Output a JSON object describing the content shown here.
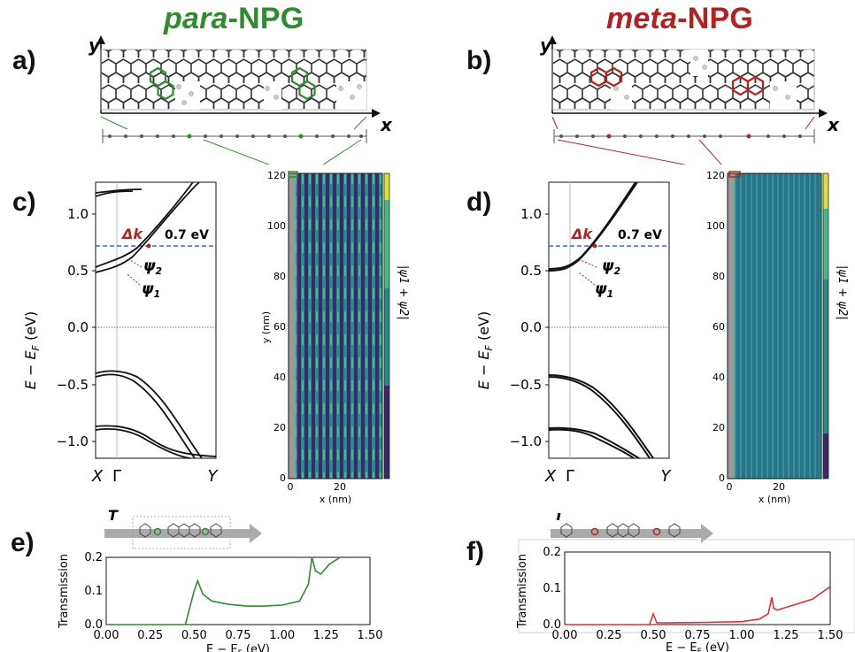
{
  "colors": {
    "para": "#2e8b2e",
    "meta": "#b22222",
    "band_line": "#111111",
    "dashed_blue": "#4466cc",
    "viridis_dark": "#3b2a6b",
    "viridis_mid": "#2a8a8a",
    "viridis_light": "#d8e13a"
  },
  "titles": {
    "para": {
      "italic": "para",
      "rest": "-NPG"
    },
    "meta": {
      "italic": "meta",
      "rest": "-NPG"
    }
  },
  "panels": {
    "a": "a)",
    "b": "b)",
    "c": "c)",
    "d": "d)",
    "e": "e)",
    "f": "f)"
  },
  "structure_axes": {
    "x": "x",
    "y": "y"
  },
  "band_plot": {
    "ylabel": "E − E",
    "ylabel_sub": "F",
    "ylabel_unit": " (eV)",
    "yticks": [
      "1.0",
      "0.5",
      "0.0",
      "−0.5",
      "−1.0"
    ],
    "xticks": [
      "X",
      "Γ",
      "Y"
    ],
    "energy_label": "0.7 eV",
    "delta_k": "Δk",
    "psi1": "ψ",
    "psi1_sub": "1",
    "psi2": "ψ",
    "psi2_sub": "2"
  },
  "map_plot": {
    "ylabel": "y (nm)",
    "xlabel": "x (nm)",
    "yticks": [
      "0",
      "20",
      "40",
      "60",
      "80",
      "100",
      "120"
    ],
    "xticks": [
      "0",
      "20"
    ],
    "colorbar_label": "|ψ1 + ψ2|"
  },
  "transmission": {
    "T_label": "T",
    "ylabel": "Transmission",
    "yticks": [
      "0.0",
      "0.1",
      "0.2"
    ],
    "xticks": [
      "0.00",
      "0.25",
      "0.50",
      "0.75",
      "1.00",
      "1.25",
      "1.50"
    ],
    "xlabel_left": "E − E",
    "xlabel_left_sub": "F",
    "xlabel_left_unit": " (eV)",
    "xlabel_right": "E − E",
    "xlabel_right_sub": "F",
    "xlabel_right_unit": " (eV)"
  },
  "chart_data": [
    {
      "type": "line",
      "panel": "e",
      "xlabel": "E − EF (eV)",
      "ylabel": "Transmission",
      "xlim": [
        0.0,
        1.5
      ],
      "ylim": [
        0.0,
        0.2
      ],
      "x": [
        0.0,
        0.45,
        0.47,
        0.5,
        0.52,
        0.55,
        0.6,
        0.7,
        0.8,
        0.9,
        1.0,
        1.1,
        1.15,
        1.17,
        1.19,
        1.22,
        1.27,
        1.33
      ],
      "y": [
        0.0,
        0.0,
        0.04,
        0.1,
        0.13,
        0.09,
        0.07,
        0.06,
        0.055,
        0.055,
        0.058,
        0.07,
        0.12,
        0.2,
        0.16,
        0.15,
        0.18,
        0.2
      ]
    },
    {
      "type": "line",
      "panel": "f",
      "xlabel": "E − EF (eV)",
      "ylabel": "Transmission",
      "xlim": [
        0.0,
        1.5
      ],
      "ylim": [
        0.0,
        0.2
      ],
      "x": [
        0.0,
        0.45,
        0.48,
        0.5,
        0.52,
        0.6,
        0.8,
        1.0,
        1.1,
        1.15,
        1.17,
        1.18,
        1.2,
        1.3,
        1.4,
        1.5
      ],
      "y": [
        0.0,
        0.0,
        0.0,
        0.03,
        0.005,
        0.005,
        0.006,
        0.008,
        0.015,
        0.03,
        0.075,
        0.045,
        0.04,
        0.055,
        0.07,
        0.105
      ]
    }
  ]
}
